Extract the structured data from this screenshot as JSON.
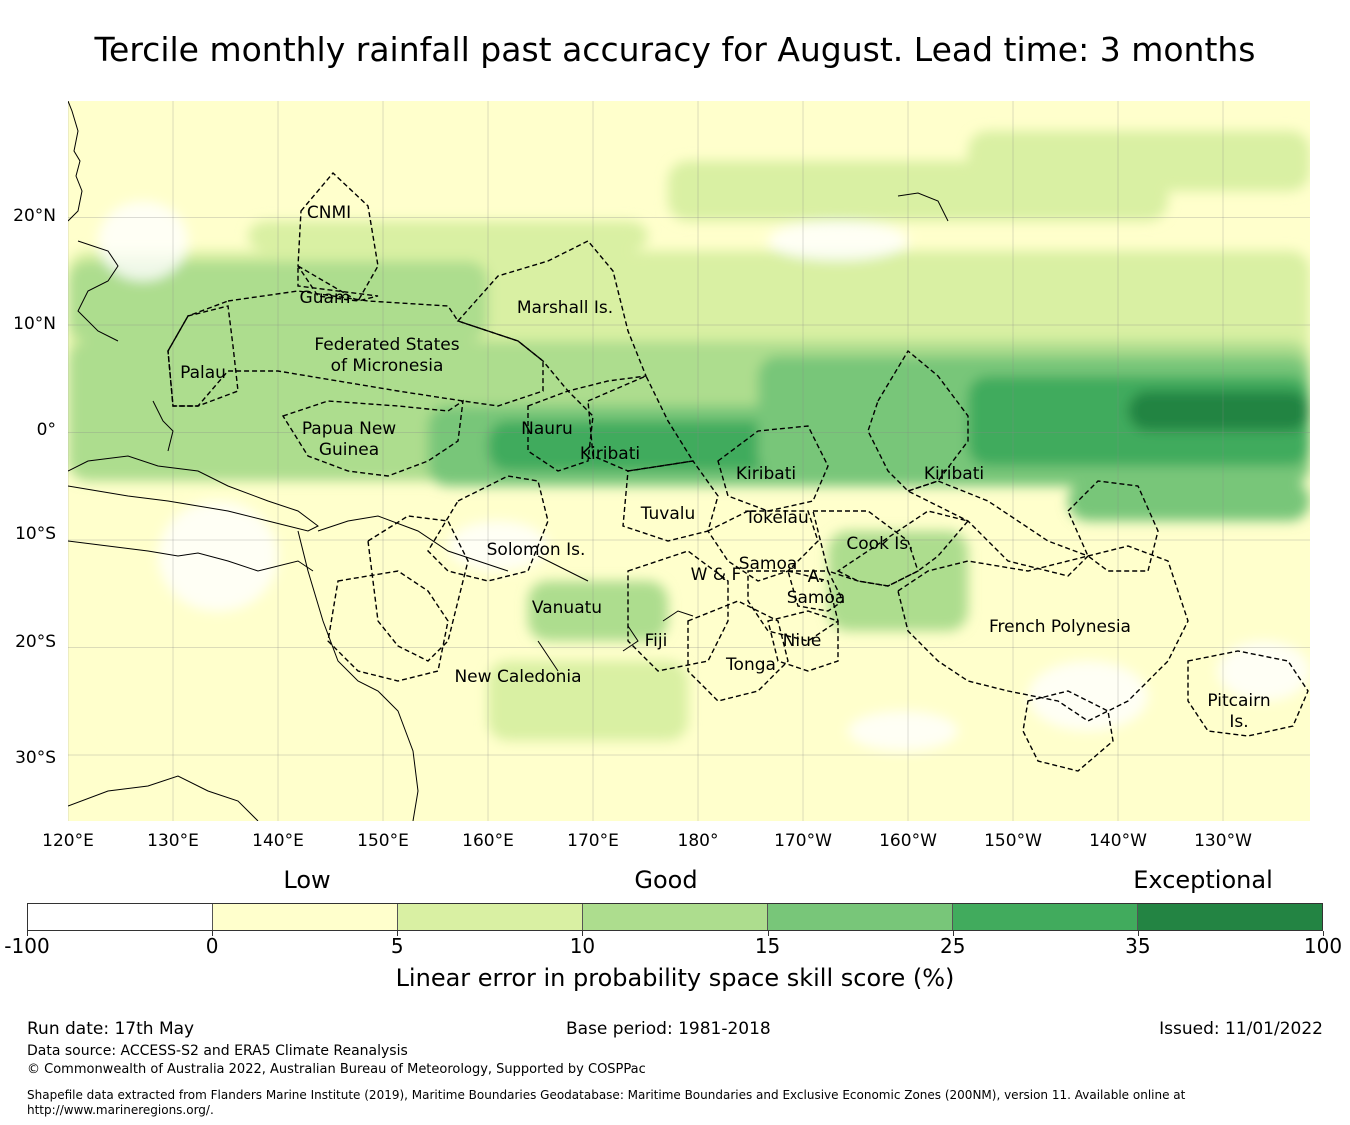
{
  "title": "Tercile monthly rainfall past accuracy for August. Lead time: 3 months",
  "map": {
    "lat_labels": [
      "20°N",
      "10°N",
      "0°",
      "10°S",
      "20°S",
      "30°S"
    ],
    "lon_labels": [
      "120°E",
      "130°E",
      "140°E",
      "150°E",
      "160°E",
      "170°E",
      "180°",
      "170°W",
      "160°W",
      "150°W",
      "140°W",
      "130°W"
    ],
    "regions": [
      {
        "lines": [
          "CNMI"
        ]
      },
      {
        "lines": [
          "Guam"
        ]
      },
      {
        "lines": [
          "Marshall Is."
        ]
      },
      {
        "lines": [
          "Federated States",
          "of Micronesia"
        ]
      },
      {
        "lines": [
          "Palau"
        ]
      },
      {
        "lines": [
          "Papua New",
          "Guinea"
        ]
      },
      {
        "lines": [
          "Nauru"
        ]
      },
      {
        "lines": [
          "Kiribati"
        ]
      },
      {
        "lines": [
          "Kiribati"
        ]
      },
      {
        "lines": [
          "Kiribati"
        ]
      },
      {
        "lines": [
          "Tuvalu"
        ]
      },
      {
        "lines": [
          "Tokelau"
        ]
      },
      {
        "lines": [
          "Solomon Is."
        ]
      },
      {
        "lines": [
          "Samoa"
        ]
      },
      {
        "lines": [
          "W & F"
        ]
      },
      {
        "lines": [
          "A.",
          "Samoa"
        ]
      },
      {
        "lines": [
          "Cook Is."
        ]
      },
      {
        "lines": [
          "Vanuatu"
        ]
      },
      {
        "lines": [
          "Fiji"
        ]
      },
      {
        "lines": [
          "Niue"
        ]
      },
      {
        "lines": [
          "Tonga"
        ]
      },
      {
        "lines": [
          "French Polynesia"
        ]
      },
      {
        "lines": [
          "New Caledonia"
        ]
      },
      {
        "lines": [
          "Pitcairn",
          "Is."
        ]
      }
    ]
  },
  "colorbar": {
    "categories": [
      "Low",
      "Good",
      "Exceptional"
    ],
    "ticks": [
      "-100",
      "0",
      "5",
      "10",
      "15",
      "25",
      "35",
      "100"
    ],
    "colors": [
      "#ffffff",
      "#ffffcc",
      "#d9f0a3",
      "#addd8e",
      "#78c679",
      "#41ab5d",
      "#238443"
    ],
    "title": "Linear error in probability space skill score (%)"
  },
  "footer": {
    "run_date": "Run date: 17th May",
    "base_period": "Base period: 1981-2018",
    "issued": "Issued: 11/01/2022",
    "data_source": "Data source: ACCESS-S2 and ERA5 Climate Reanalysis",
    "copyright": "© Commonwealth of Australia 2022, Australian Bureau of Meteorology, Supported by COSPPac",
    "shapefile_note": "Shapefile data extracted from Flanders Marine Institute (2019), Maritime Boundaries Geodatabase: Maritime Boundaries and Exclusive Economic Zones (200NM), version 11. Available online at http://www.marineregions.org/."
  }
}
